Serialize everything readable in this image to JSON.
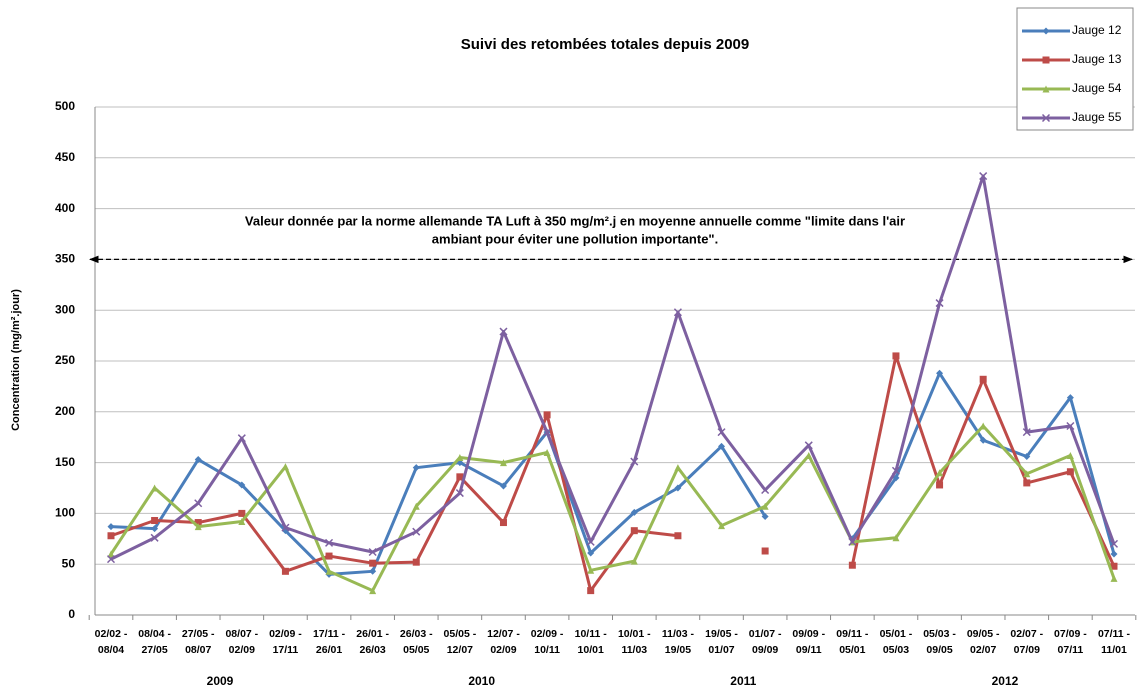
{
  "chart_data": {
    "type": "line",
    "title": "Suivi des retombées totales depuis 2009",
    "y_label": "Concentration (mg/m².jour)",
    "annotation": [
      "Valeur donnée par la norme allemande TA Luft à 350 mg/m².j en moyenne annuelle comme \"limite dans l'air",
      "ambiant pour éviter une pollution importante\"."
    ],
    "reference_value": 350,
    "categories": [
      [
        "02/02 -",
        "08/04"
      ],
      [
        "08/04 -",
        "27/05"
      ],
      [
        "27/05 -",
        "08/07"
      ],
      [
        "08/07 -",
        "02/09"
      ],
      [
        "02/09 -",
        "17/11"
      ],
      [
        "17/11 -",
        "26/01"
      ],
      [
        "26/01 -",
        "26/03"
      ],
      [
        "26/03 -",
        "05/05"
      ],
      [
        "05/05 -",
        "12/07"
      ],
      [
        "12/07 -",
        "02/09"
      ],
      [
        "02/09 -",
        "10/11"
      ],
      [
        "10/11 -",
        "10/01"
      ],
      [
        "10/01 -",
        "11/03"
      ],
      [
        "11/03 -",
        "19/05"
      ],
      [
        "19/05 -",
        "01/07"
      ],
      [
        "01/07 -",
        "09/09"
      ],
      [
        "09/09 -",
        "09/11"
      ],
      [
        "09/11 -",
        "05/01"
      ],
      [
        "05/01 -",
        "05/03"
      ],
      [
        "05/03 -",
        "09/05"
      ],
      [
        "09/05 -",
        "02/07"
      ],
      [
        "02/07 -",
        "07/09"
      ],
      [
        "07/09 -",
        "07/11"
      ],
      [
        "07/11 -",
        "11/01"
      ]
    ],
    "groups": [
      {
        "label": "2009",
        "from": 0,
        "to": 5
      },
      {
        "label": "2010",
        "from": 6,
        "to": 11
      },
      {
        "label": "2011",
        "from": 12,
        "to": 17
      },
      {
        "label": "2012",
        "from": 18,
        "to": 23
      }
    ],
    "series": [
      {
        "name": "Jauge 12",
        "color": "#4a7ebb",
        "marker": "diamond",
        "values": [
          87,
          85,
          153,
          128,
          83,
          40,
          43,
          145,
          150,
          127,
          180,
          61,
          101,
          125,
          166,
          97,
          null,
          75,
          135,
          238,
          172,
          156,
          214,
          60
        ]
      },
      {
        "name": "Jauge 13",
        "color": "#be4b48",
        "marker": "square",
        "values": [
          78,
          93,
          91,
          100,
          43,
          58,
          51,
          52,
          136,
          91,
          197,
          24,
          83,
          78,
          null,
          63,
          null,
          49,
          255,
          128,
          232,
          130,
          141,
          48
        ]
      },
      {
        "name": "Jauge 54",
        "color": "#98b954",
        "marker": "triangle",
        "values": [
          60,
          125,
          87,
          92,
          146,
          43,
          24,
          107,
          155,
          150,
          160,
          44,
          53,
          145,
          88,
          107,
          157,
          72,
          76,
          140,
          186,
          139,
          157,
          36
        ]
      },
      {
        "name": "Jauge 55",
        "color": "#7d60a0",
        "marker": "x",
        "values": [
          55,
          76,
          110,
          174,
          86,
          71,
          62,
          82,
          120,
          279,
          180,
          72,
          151,
          298,
          180,
          123,
          167,
          72,
          142,
          307,
          432,
          180,
          186,
          70
        ]
      }
    ],
    "ylim": [
      0,
      500
    ],
    "yticks": [
      0,
      50,
      100,
      150,
      200,
      250,
      300,
      350,
      400,
      450,
      500
    ],
    "grid": true,
    "legend": "top-right"
  }
}
